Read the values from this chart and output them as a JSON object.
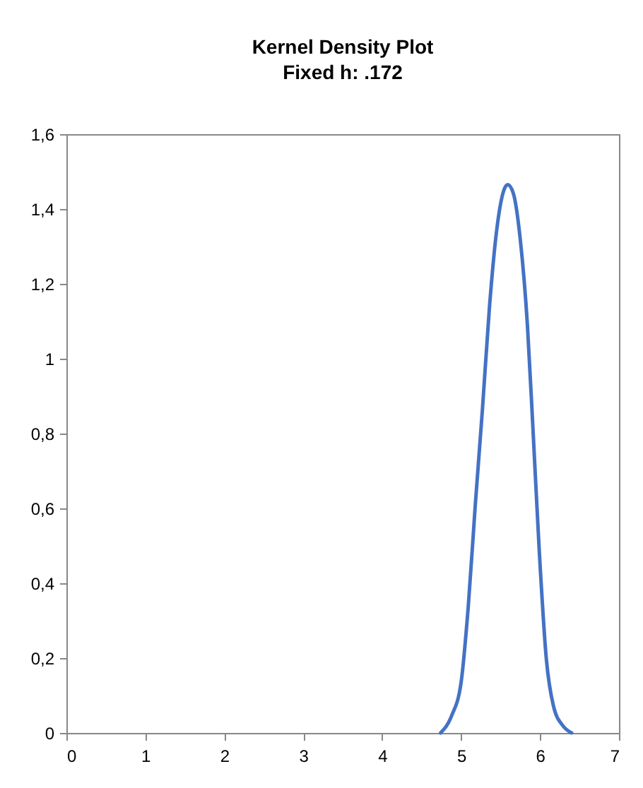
{
  "chart_data": {
    "type": "line",
    "title": "Kernel Density Plot",
    "subtitle": "Fixed h: .172",
    "x": [
      4.74,
      4.88,
      5.0,
      5.09,
      5.18,
      5.27,
      5.36,
      5.45,
      5.54,
      5.59,
      5.66,
      5.75,
      5.84,
      5.91,
      5.99,
      6.08,
      6.17,
      6.29,
      6.4
    ],
    "series": [
      {
        "color": "#4472c4",
        "values": [
          0,
          0.046,
          0.135,
          0.336,
          0.61,
          0.864,
          1.14,
          1.342,
          1.449,
          1.465,
          1.443,
          1.318,
          1.09,
          0.814,
          0.487,
          0.197,
          0.072,
          0.019,
          0
        ]
      }
    ],
    "xlim": [
      0,
      7
    ],
    "xticks": [
      0,
      1,
      2,
      3,
      4,
      5,
      6,
      7
    ],
    "ylim": [
      0,
      1.6
    ],
    "yticks": [
      0,
      {
        "value": 0.2,
        "label": "0,2"
      },
      {
        "value": 0.4,
        "label": "0,4"
      },
      {
        "value": 0.6,
        "label": "0,6"
      },
      {
        "value": 0.8,
        "label": "0,8"
      },
      1,
      {
        "value": 1.2,
        "label": "1,2"
      },
      {
        "value": 1.4,
        "label": "1,4"
      },
      {
        "value": 1.6,
        "label": "1,6"
      }
    ],
    "grid": false,
    "marker": "none",
    "line_style": "solid"
  }
}
